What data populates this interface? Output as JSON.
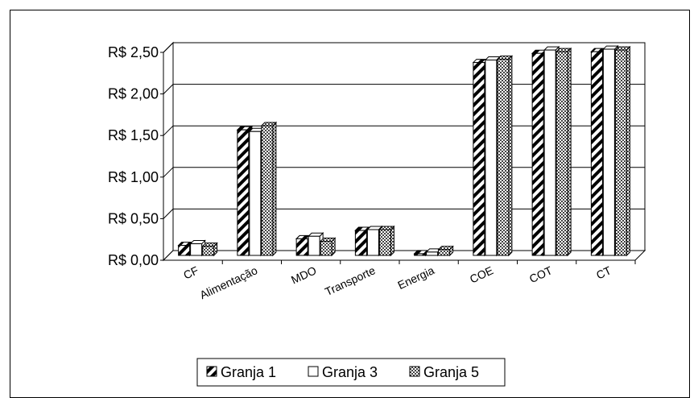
{
  "chart_data": {
    "type": "bar",
    "categories": [
      "CF",
      "Alimentação",
      "MDO",
      "Transporte",
      "Energia",
      "COE",
      "COT",
      "CT"
    ],
    "series": [
      {
        "name": "Granja 1",
        "values": [
          0.12,
          1.51,
          0.2,
          0.3,
          0.02,
          2.32,
          2.43,
          2.45
        ]
      },
      {
        "name": "Granja 3",
        "values": [
          0.14,
          1.49,
          0.23,
          0.31,
          0.04,
          2.35,
          2.47,
          2.48
        ]
      },
      {
        "name": "Granja 5",
        "values": [
          0.11,
          1.56,
          0.17,
          0.31,
          0.07,
          2.36,
          2.45,
          2.47
        ]
      }
    ],
    "y_ticks": [
      "R$ 0,00",
      "R$ 0,50",
      "R$ 1,00",
      "R$ 1,50",
      "R$ 2,00",
      "R$ 2,50"
    ],
    "ylim": [
      0,
      2.5
    ],
    "grid": true,
    "legend_position": "bottom",
    "series_patterns": [
      "diagonal-stripes",
      "solid-white",
      "checkered"
    ]
  }
}
